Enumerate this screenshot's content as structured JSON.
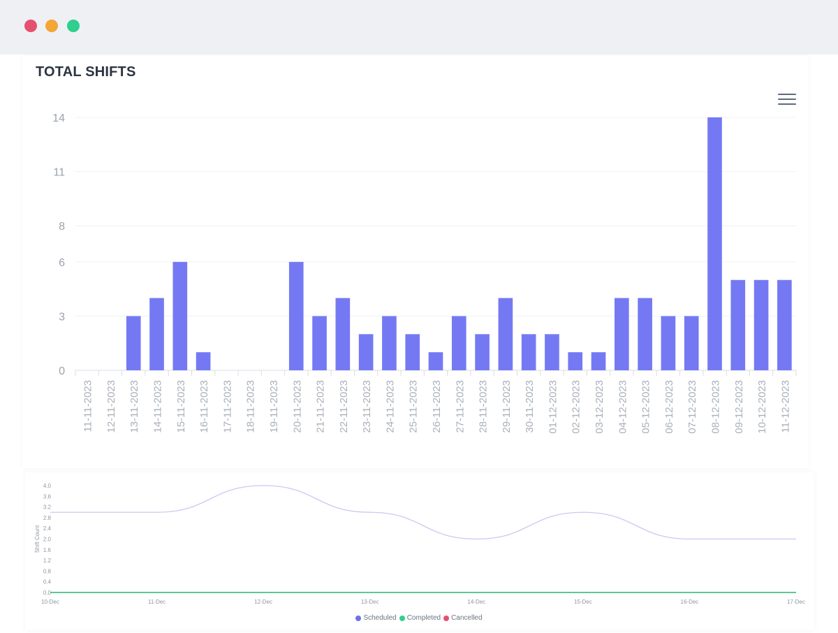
{
  "window": {
    "buttons": [
      "close",
      "minimize",
      "maximize"
    ]
  },
  "card_title": "TOTAL SHIFTS",
  "colors": {
    "bar": "#7479f3",
    "scheduled": "#6d71e8",
    "completed": "#2fcf8d",
    "cancelled": "#e5506e"
  },
  "chart_data": [
    {
      "type": "bar",
      "title": "TOTAL SHIFTS",
      "xlabel": "",
      "ylabel": "",
      "categories": [
        "11-11-2023",
        "12-11-2023",
        "13-11-2023",
        "14-11-2023",
        "15-11-2023",
        "16-11-2023",
        "17-11-2023",
        "18-11-2023",
        "19-11-2023",
        "20-11-2023",
        "21-11-2023",
        "22-11-2023",
        "23-11-2023",
        "24-11-2023",
        "25-11-2023",
        "26-11-2023",
        "27-11-2023",
        "28-11-2023",
        "29-11-2023",
        "30-11-2023",
        "01-12-2023",
        "02-12-2023",
        "03-12-2023",
        "04-12-2023",
        "05-12-2023",
        "06-12-2023",
        "07-12-2023",
        "08-12-2023",
        "09-12-2023",
        "10-12-2023",
        "11-12-2023"
      ],
      "values": [
        0,
        0,
        3,
        4,
        6,
        1,
        0,
        0,
        0,
        6,
        3,
        4,
        2,
        3,
        2,
        1,
        3,
        2,
        4,
        2,
        2,
        1,
        1,
        4,
        4,
        3,
        3,
        14,
        5,
        5,
        5
      ],
      "ylim": [
        0,
        14
      ],
      "yticks": [
        "0",
        "3",
        "6",
        "8",
        "11",
        "14"
      ],
      "grid": true
    },
    {
      "type": "line",
      "x": [
        "10-Dec",
        "11-Dec",
        "12-Dec",
        "13-Dec",
        "14-Dec",
        "15-Dec",
        "16-Dec",
        "17-Dec"
      ],
      "ylabel": "Shift Count",
      "ylim": [
        0,
        4
      ],
      "yticks": [
        "0.0",
        "0.4",
        "0.8",
        "1.2",
        "1.6",
        "2.0",
        "2.4",
        "2.8",
        "3.2",
        "3.6",
        "4.0"
      ],
      "series": [
        {
          "name": "Scheduled",
          "values": [
            3,
            3,
            4,
            3,
            2,
            3,
            2,
            2
          ]
        },
        {
          "name": "Completed",
          "values": [
            0,
            0,
            0,
            0,
            0,
            0,
            0,
            0
          ]
        },
        {
          "name": "Cancelled",
          "values": [
            0,
            0,
            0,
            0,
            0,
            0,
            0,
            0
          ]
        }
      ],
      "legend": "bottom-center"
    }
  ]
}
